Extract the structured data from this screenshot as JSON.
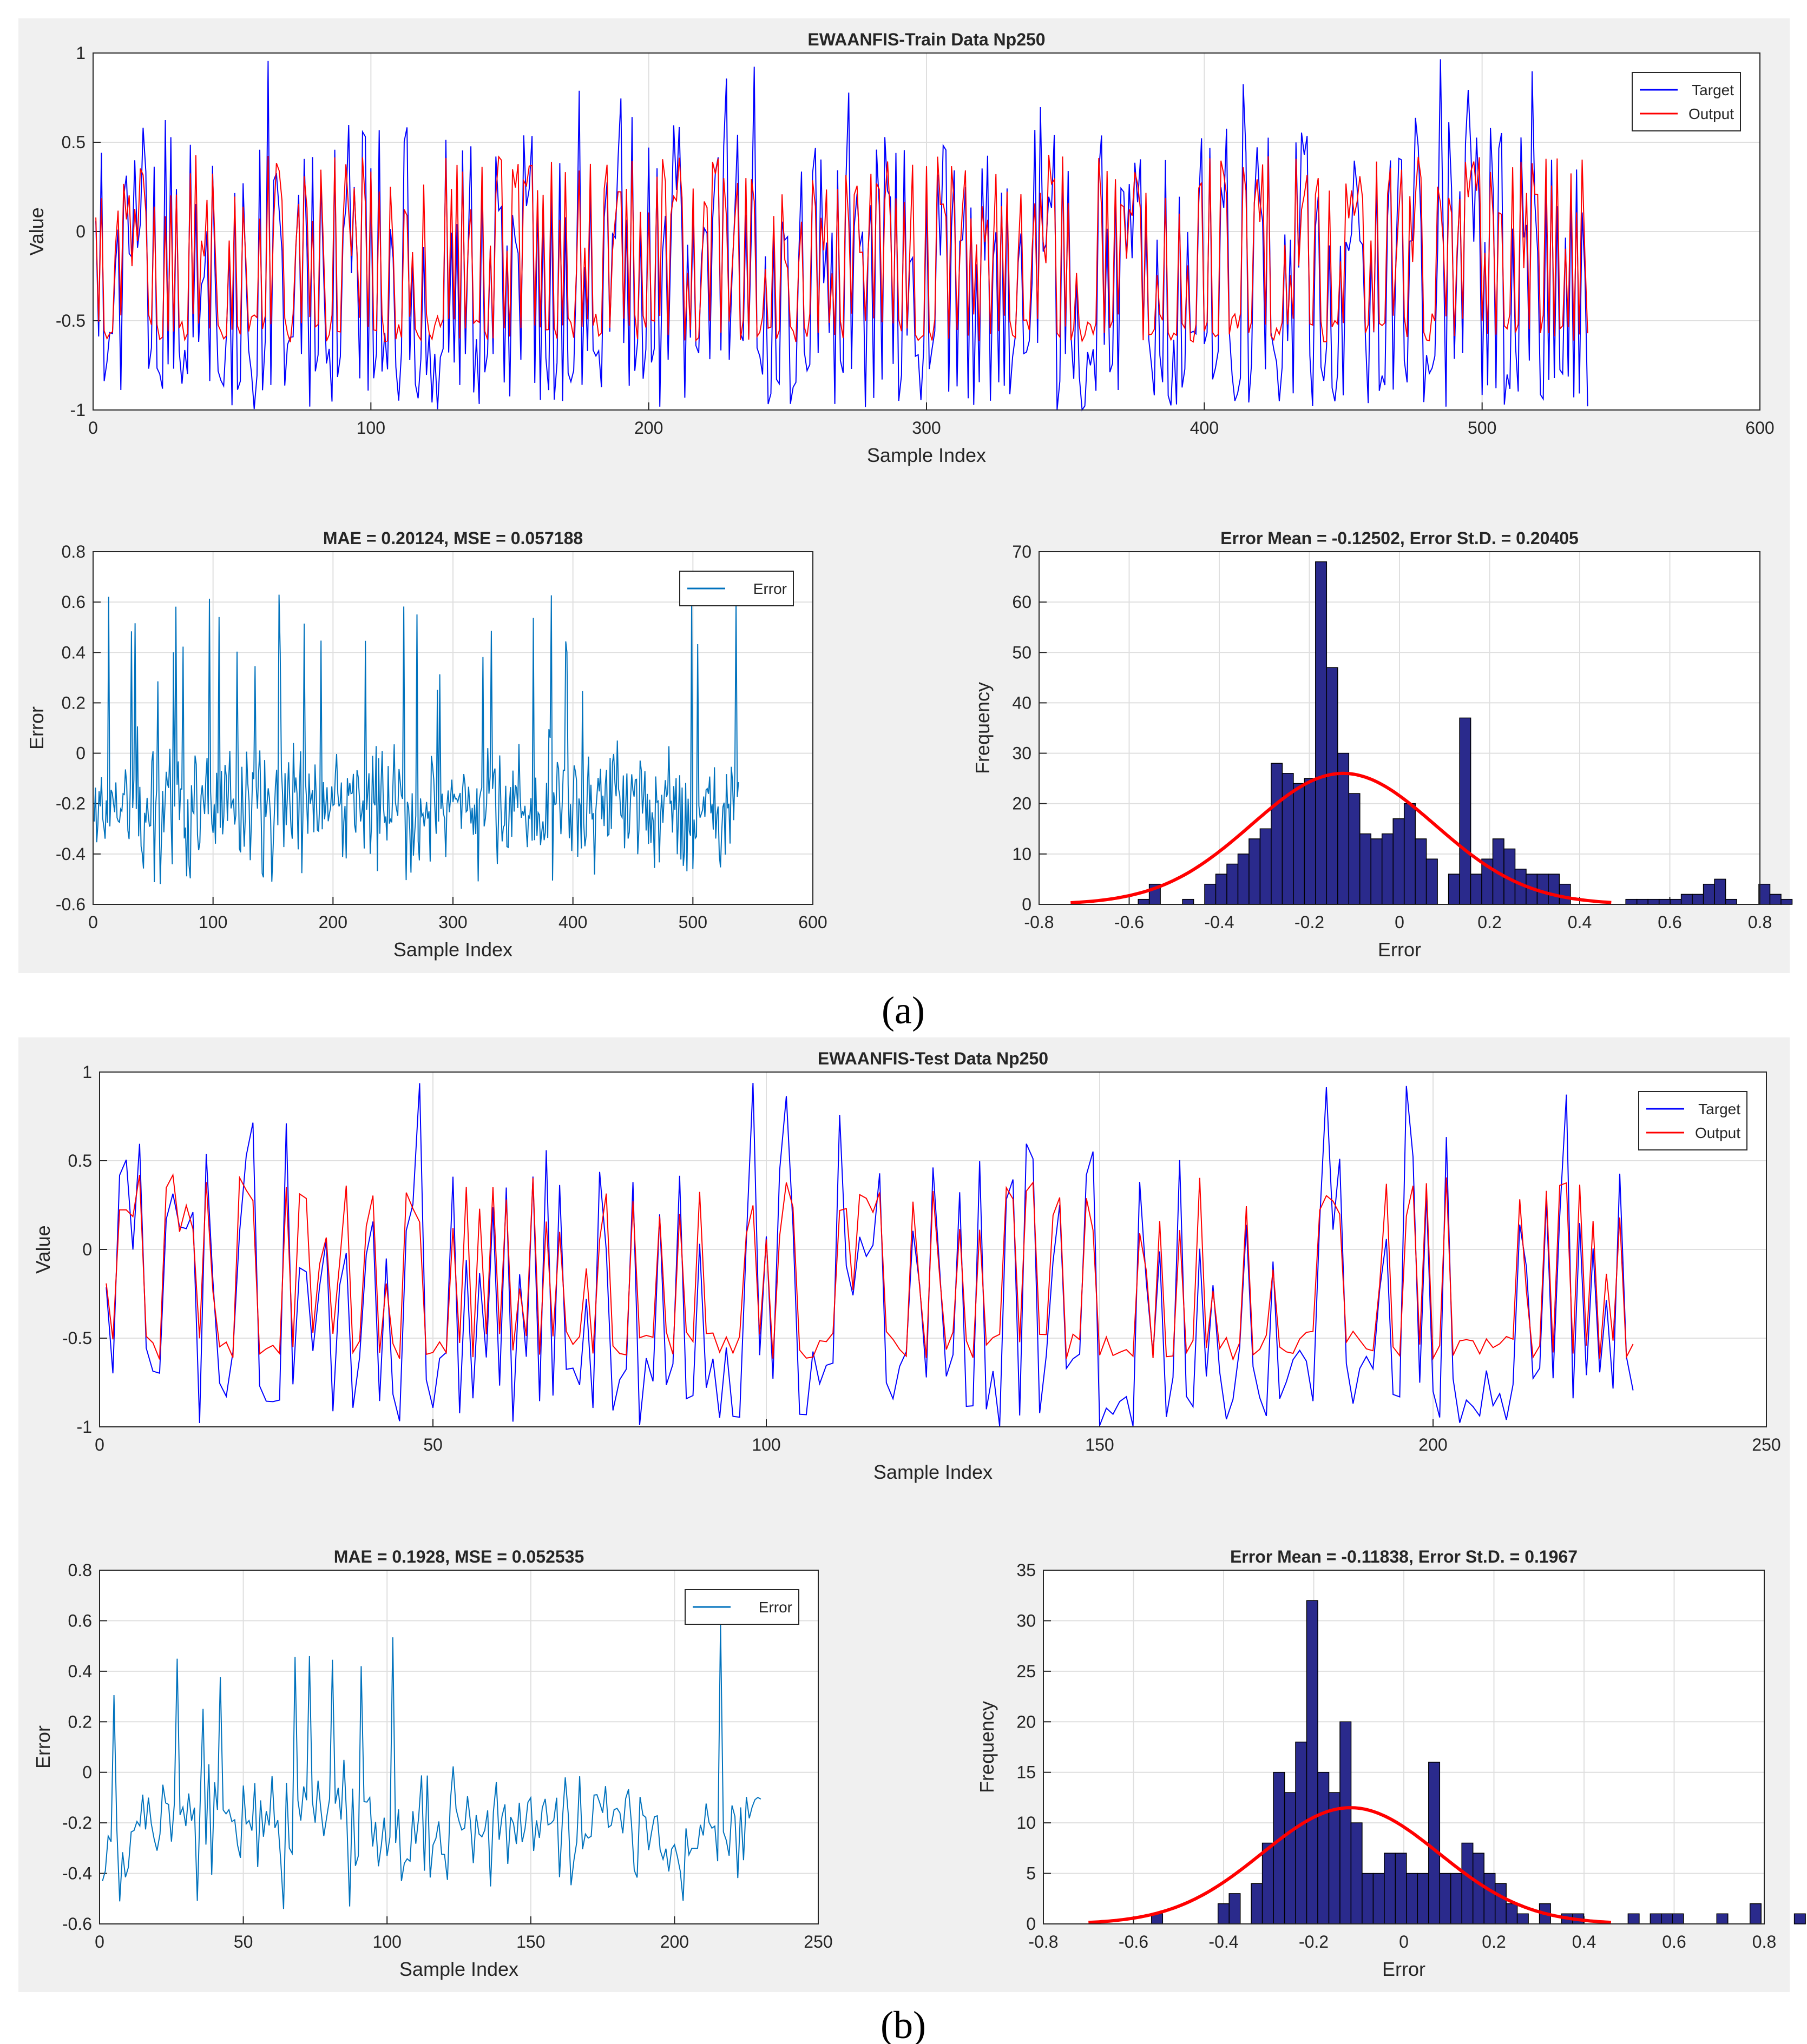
{
  "colors": {
    "panel_bg": "#f0f0f0",
    "target": "#0000ff",
    "output": "#ff0000",
    "error": "#0072bd",
    "bar_fill": "#2a2a8c",
    "fit": "#ff0000",
    "grid": "#dfdfdf"
  },
  "captions": {
    "a": "(a)",
    "b": "(b)"
  },
  "chart_data": [
    {
      "id": "a_series",
      "type": "line",
      "title": "EWAANFIS-Train Data Np250",
      "xlabel": "Sample Index",
      "ylabel": "Value",
      "xlim": [
        0,
        600
      ],
      "ylim": [
        -1,
        1
      ],
      "xticks": [
        0,
        100,
        200,
        300,
        400,
        500,
        600
      ],
      "yticks": [
        -1,
        -0.5,
        0,
        0.5,
        1
      ],
      "legend": [
        "Target",
        "Output"
      ],
      "legend_position": "top-right",
      "n_points": 538,
      "series": [
        {
          "name": "Target",
          "kind": "target",
          "seed": 11,
          "range": [
            -1,
            1
          ]
        },
        {
          "name": "Output",
          "kind": "output",
          "seed": 11,
          "range": [
            -0.62,
            0.48
          ]
        }
      ]
    },
    {
      "id": "a_error",
      "type": "line",
      "title": "MAE = 0.20124, MSE = 0.057188",
      "xlabel": "Sample Index",
      "ylabel": "Error",
      "xlim": [
        0,
        600
      ],
      "ylim": [
        -0.6,
        0.8
      ],
      "xticks": [
        0,
        100,
        200,
        300,
        400,
        500,
        600
      ],
      "yticks": [
        -0.6,
        -0.4,
        -0.2,
        0,
        0.2,
        0.4,
        0.6,
        0.8
      ],
      "legend": [
        "Error"
      ],
      "legend_position": "top-right",
      "n_points": 538,
      "series": [
        {
          "name": "Error",
          "kind": "error",
          "seed": 23,
          "mean": -0.2,
          "range": [
            -0.57,
            0.66
          ]
        }
      ]
    },
    {
      "id": "a_hist",
      "type": "bar",
      "title": "Error Mean = -0.12502, Error St.D. = 0.20405",
      "xlabel": "Error",
      "ylabel": "Frequency",
      "xlim": [
        -0.8,
        0.8
      ],
      "ylim": [
        0,
        70
      ],
      "xticks": [
        -0.8,
        -0.6,
        -0.4,
        -0.2,
        0,
        0.2,
        0.4,
        0.6,
        0.8
      ],
      "yticks": [
        0,
        10,
        20,
        30,
        40,
        50,
        60,
        70
      ],
      "bin_start": -0.58,
      "bin_width": 0.0246,
      "counts": [
        1,
        4,
        0,
        0,
        1,
        0,
        4,
        6,
        8,
        10,
        13,
        15,
        28,
        26,
        24,
        25,
        68,
        47,
        30,
        22,
        14,
        13,
        14,
        17,
        20,
        13,
        9,
        0,
        6,
        37,
        6,
        9,
        13,
        11,
        7,
        6,
        6,
        6,
        4,
        0,
        0,
        0,
        0,
        0,
        1,
        1,
        1,
        1,
        1,
        2,
        2,
        4,
        5,
        1,
        0,
        0,
        4,
        2,
        1
      ],
      "fit": {
        "mean": -0.12502,
        "std": 0.20405,
        "peak": 26,
        "x_range": [
          -0.73,
          0.47
        ]
      }
    },
    {
      "id": "b_series",
      "type": "line",
      "title": "EWAANFIS-Test Data Np250",
      "xlabel": "Sample Index",
      "ylabel": "Value",
      "xlim": [
        0,
        250
      ],
      "ylim": [
        -1,
        1
      ],
      "xticks": [
        0,
        50,
        100,
        150,
        200,
        250
      ],
      "yticks": [
        -1,
        -0.5,
        0,
        0.5,
        1
      ],
      "legend": [
        "Target",
        "Output"
      ],
      "legend_position": "top-right",
      "n_points": 230,
      "series": [
        {
          "name": "Target",
          "kind": "target",
          "seed": 37,
          "range": [
            -1,
            1
          ]
        },
        {
          "name": "Output",
          "kind": "output",
          "seed": 37,
          "range": [
            -0.62,
            0.48
          ]
        }
      ]
    },
    {
      "id": "b_error",
      "type": "line",
      "title": "MAE = 0.1928, MSE = 0.052535",
      "xlabel": "Sample Index",
      "ylabel": "Error",
      "xlim": [
        0,
        250
      ],
      "ylim": [
        -0.6,
        0.8
      ],
      "xticks": [
        0,
        50,
        100,
        150,
        200,
        250
      ],
      "yticks": [
        -0.6,
        -0.4,
        -0.2,
        0,
        0.2,
        0.4,
        0.6,
        0.8
      ],
      "legend": [
        "Error"
      ],
      "legend_position": "top-right",
      "n_points": 230,
      "series": [
        {
          "name": "Error",
          "kind": "error",
          "seed": 53,
          "mean": -0.2,
          "range": [
            -0.54,
            0.68
          ]
        }
      ]
    },
    {
      "id": "b_hist",
      "type": "bar",
      "title": "Error Mean = -0.11838, Error St.D. = 0.1967",
      "xlabel": "Error",
      "ylabel": "Frequency",
      "xlim": [
        -0.8,
        0.8
      ],
      "ylim": [
        0,
        35
      ],
      "xticks": [
        -0.8,
        -0.6,
        -0.4,
        -0.2,
        0,
        0.2,
        0.4,
        0.6,
        0.8
      ],
      "yticks": [
        0,
        5,
        10,
        15,
        20,
        25,
        30,
        35
      ],
      "bin_start": -0.56,
      "bin_width": 0.0246,
      "counts": [
        1,
        0,
        0,
        0,
        0,
        0,
        2,
        3,
        0,
        4,
        8,
        15,
        13,
        18,
        32,
        15,
        13,
        20,
        10,
        5,
        5,
        7,
        7,
        5,
        5,
        16,
        5,
        5,
        8,
        7,
        5,
        4,
        2,
        1,
        0,
        2,
        0,
        1,
        1,
        0,
        0,
        0,
        0,
        1,
        0,
        1,
        1,
        1,
        0,
        0,
        0,
        1,
        0,
        0,
        2,
        0,
        0,
        0,
        1
      ],
      "fit": {
        "mean": -0.11838,
        "std": 0.1967,
        "peak": 11.5,
        "x_range": [
          -0.7,
          0.46
        ]
      }
    }
  ]
}
